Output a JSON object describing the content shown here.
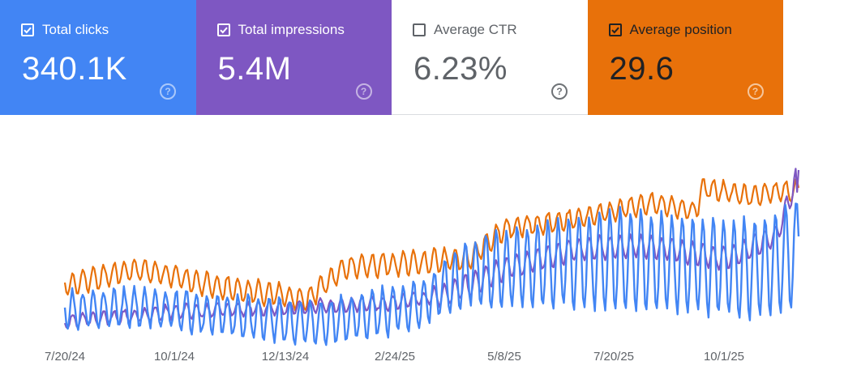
{
  "metrics": [
    {
      "key": "clicks",
      "label": "Total clicks",
      "value": "340.1K",
      "checked": true,
      "color": "#4285f4"
    },
    {
      "key": "impressions",
      "label": "Total impressions",
      "value": "5.4M",
      "checked": true,
      "color": "#7e57c2"
    },
    {
      "key": "ctr",
      "label": "Average CTR",
      "value": "6.23%",
      "checked": false,
      "color": "#ffffff"
    },
    {
      "key": "position",
      "label": "Average position",
      "value": "29.6",
      "checked": true,
      "color": "#e8710a"
    }
  ],
  "help_icon": "help-circle-icon",
  "chart_data": {
    "type": "line",
    "x_ticks": [
      "7/20/24",
      "10/1/24",
      "12/13/24",
      "2/24/25",
      "5/8/25",
      "7/20/25",
      "10/1/25"
    ],
    "x_range": [
      "2024-07-20",
      "2025-11-30"
    ],
    "y_axis_visible": false,
    "grid": false,
    "series": [
      {
        "name": "Total clicks",
        "color": "#4285f4"
      },
      {
        "name": "Total impressions",
        "color": "#7e57c2"
      },
      {
        "name": "Average position",
        "color": "#e8710a"
      }
    ]
  }
}
